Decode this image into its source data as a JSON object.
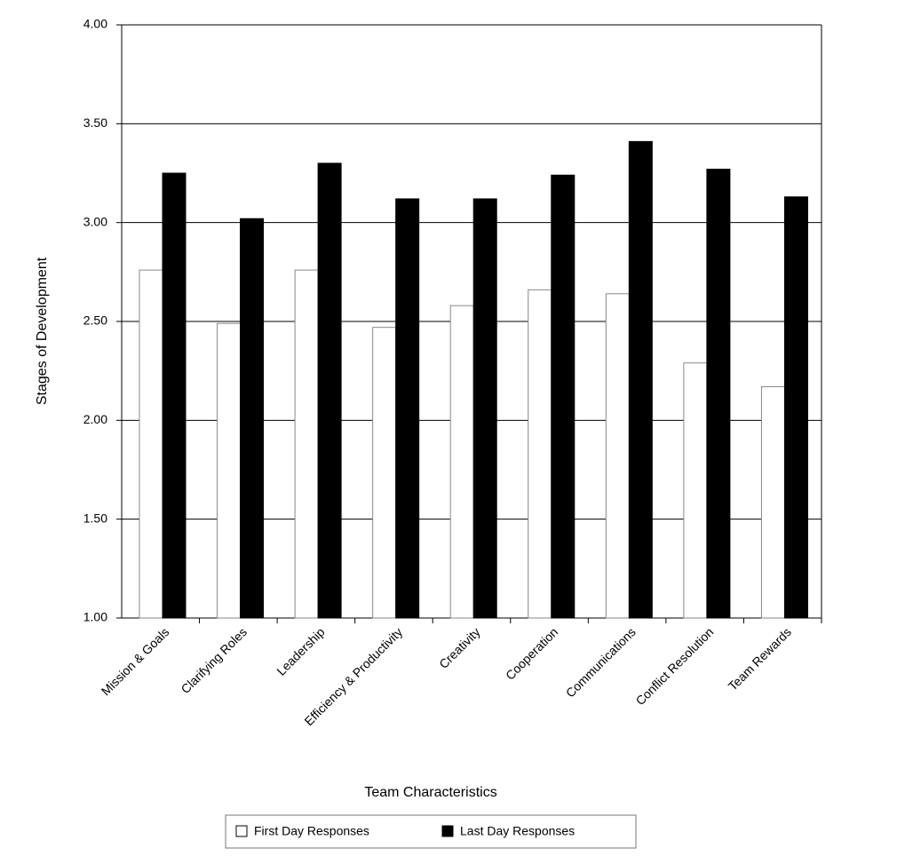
{
  "chart_data": {
    "type": "bar",
    "x_label": "Team Characteristics",
    "y_label": "Stages of Development",
    "categories": [
      "Mission & Goals",
      "Clarifying Roles",
      "Leadership",
      "Efficiency & Productivity",
      "Creativity",
      "Cooperation",
      "Communications",
      "Conflict Resolution",
      "Team Rewards"
    ],
    "series": [
      {
        "name": "First Day Responses",
        "color": "#ffffff",
        "values": [
          2.76,
          2.49,
          2.76,
          2.47,
          2.58,
          2.66,
          2.64,
          2.29,
          2.17
        ]
      },
      {
        "name": "Last Day Responses",
        "color": "#000000",
        "values": [
          3.25,
          3.02,
          3.3,
          3.12,
          3.12,
          3.24,
          3.41,
          3.27,
          3.13
        ]
      }
    ],
    "ylim": [
      1,
      4
    ],
    "yticks": [
      {
        "value": 1,
        "label": "1.00"
      },
      {
        "value": 1.5,
        "label": "1.50"
      },
      {
        "value": 2,
        "label": "2.00"
      },
      {
        "value": 2.5,
        "label": "2.50"
      },
      {
        "value": 3,
        "label": "3.00"
      },
      {
        "value": 3.5,
        "label": "3.50"
      },
      {
        "value": 4,
        "label": "4.00"
      }
    ],
    "grid": true,
    "legend": "bottom"
  }
}
